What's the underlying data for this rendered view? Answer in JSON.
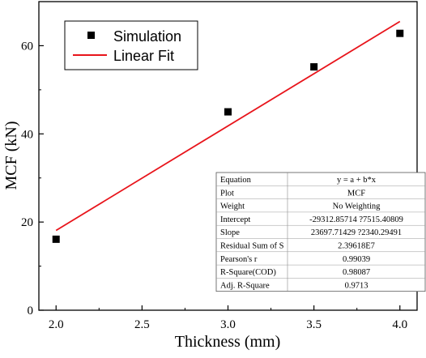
{
  "chart_data": {
    "type": "scatter",
    "xlabel": "Thickness (mm)",
    "ylabel": "MCF (kN)",
    "xlim": [
      1.9,
      4.1
    ],
    "ylim": [
      0,
      70
    ],
    "x_ticks": [
      "2.0",
      "2.5",
      "3.0",
      "3.5",
      "4.0"
    ],
    "y_ticks": [
      "0",
      "20",
      "40",
      "60"
    ],
    "grid": false,
    "legend_position": "top-left",
    "series": [
      {
        "name": "Simulation",
        "kind": "scatter",
        "marker": "square",
        "color": "#000000",
        "points": [
          {
            "x": 2.0,
            "y": 16.1
          },
          {
            "x": 3.0,
            "y": 45.0
          },
          {
            "x": 3.5,
            "y": 55.2
          },
          {
            "x": 4.0,
            "y": 62.8
          }
        ]
      },
      {
        "name": "Linear Fit",
        "kind": "line",
        "color": "#e8141b",
        "points": [
          {
            "x": 2.0,
            "y": 18.1
          },
          {
            "x": 4.0,
            "y": 65.5
          }
        ]
      }
    ],
    "fit_table": [
      {
        "label": "Equation",
        "value": "y = a + b*x"
      },
      {
        "label": "Plot",
        "value": "MCF"
      },
      {
        "label": "Weight",
        "value": "No Weighting"
      },
      {
        "label": "Intercept",
        "value": "-29312.85714 ?7515.40809"
      },
      {
        "label": "Slope",
        "value": "23697.71429 ?2340.29491"
      },
      {
        "label": "Residual Sum of S",
        "value": "2.39618E7"
      },
      {
        "label": "Pearson's r",
        "value": "0.99039"
      },
      {
        "label": "R-Square(COD)",
        "value": "0.98087"
      },
      {
        "label": "Adj. R-Square",
        "value": "0.9713"
      }
    ]
  }
}
